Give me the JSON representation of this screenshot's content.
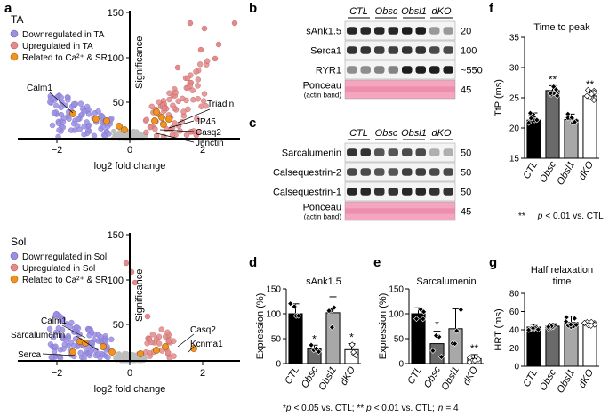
{
  "panel_labels": {
    "a": "a",
    "b": "b",
    "c": "c",
    "d": "d",
    "e": "e",
    "f": "f",
    "g": "g"
  },
  "volcano": {
    "axis_ylabel": "Significance",
    "axis_xlabel": "log2 fold change",
    "xticks": [
      "−2",
      "0",
      "2"
    ],
    "top": {
      "tissue": "TA",
      "yticks": [
        "50",
        "100",
        "150"
      ],
      "legend": [
        "Downregulated in TA",
        "Upregulated in TA",
        "Related to Ca²⁺ & SR"
      ],
      "genes": [
        "Calm1",
        "Triadin",
        "JP45",
        "Casq2",
        "Junctin"
      ]
    },
    "bottom": {
      "tissue": "Sol",
      "yticks": [
        "50",
        "100",
        "150"
      ],
      "legend": [
        "Downregulated in Sol",
        "Upregulated in Sol",
        "Related to Ca²⁺ & SR"
      ],
      "genes": [
        "Calm1",
        "Sarcalumenin",
        "Serca",
        "Casq2",
        "Kcnma1"
      ]
    }
  },
  "western": {
    "lanes": [
      "CTL",
      "Obsc",
      "Obsl1",
      "dKO"
    ],
    "b_rows": [
      {
        "name": "sAnk1.5",
        "kda": "20"
      },
      {
        "name": "Serca1",
        "kda": "100"
      },
      {
        "name": "RYR1",
        "kda": "~550"
      },
      {
        "name": "Ponceau",
        "sub": "(actin band)",
        "kda": "45"
      }
    ],
    "c_rows": [
      {
        "name": "Sarcalumenin",
        "kda": "50"
      },
      {
        "name": "Calsequestrin-2",
        "kda": "50"
      },
      {
        "name": "Calsequestrin-1",
        "kda": "50"
      },
      {
        "name": "Ponceau",
        "sub": "(actin band)",
        "kda": "45"
      }
    ]
  },
  "chart_data": [
    {
      "type": "bar",
      "panel": "d",
      "title": "sAnk1.5",
      "ylabel": "Expression (%)",
      "categories": [
        "CTL",
        "Obsc",
        "Obsl1",
        "dKO"
      ],
      "values": [
        100,
        30,
        102,
        28
      ],
      "errors": [
        20,
        7,
        32,
        12
      ],
      "significance": [
        "",
        "*",
        "",
        "*"
      ],
      "ylim": [
        0,
        150
      ],
      "yticks": [
        "0",
        "50",
        "100",
        "150"
      ]
    },
    {
      "type": "bar",
      "panel": "e",
      "title": "Sarcalumenin",
      "ylabel": "Expression (%)",
      "categories": [
        "CTL",
        "Obsc",
        "Obsl1",
        "dKO"
      ],
      "values": [
        100,
        40,
        70,
        10
      ],
      "errors": [
        12,
        25,
        40,
        8
      ],
      "significance": [
        "",
        "*",
        "",
        "**"
      ],
      "ylim": [
        0,
        150
      ],
      "yticks": [
        "0",
        "50",
        "100",
        "150"
      ]
    },
    {
      "type": "bar",
      "panel": "f",
      "title": "Time to peak",
      "ylabel": "TtP (ms)",
      "categories": [
        "CTL",
        "Obsc",
        "Obsl1",
        "dKO"
      ],
      "values": [
        21.3,
        26.2,
        21.4,
        25.3
      ],
      "errors": [
        1.2,
        0.8,
        0.9,
        0.9
      ],
      "significance": [
        "",
        "**",
        "",
        "**"
      ],
      "ylim": [
        15,
        35
      ],
      "yticks": [
        "15",
        "20",
        "25",
        "30",
        "35"
      ]
    },
    {
      "type": "bar",
      "panel": "g",
      "title_lines": [
        "Half relaxation",
        "time"
      ],
      "ylabel": "HRT (ms)",
      "categories": [
        "CTL",
        "Obsc",
        "Obsl1",
        "dKO"
      ],
      "values": [
        43,
        44,
        48,
        46
      ],
      "errors": [
        3,
        3,
        7,
        2.5
      ],
      "significance": [
        "",
        "",
        "",
        ""
      ],
      "ylim": [
        0,
        80
      ],
      "yticks": [
        "0",
        "20",
        "40",
        "60",
        "80"
      ]
    }
  ],
  "footnotes": {
    "f_mark": "**",
    "f_p": "p",
    "f_rest": "< 0.01 vs. CTL",
    "de_star1": "*",
    "de_p1": "p",
    "de_rest1": "< 0.05 vs. CTL; **",
    "de_p2": "p",
    "de_rest2": "< 0.01 vs. CTL;",
    "de_n": "n",
    "de_rest3": "= 4"
  },
  "colors": {
    "down": "#9b8fe0",
    "up": "#e48a8a",
    "ca": "#f0941f",
    "gray": "#bdbdbd",
    "bar_ctl": "#000000",
    "bar_obsc": "#6a6a6a",
    "bar_obsl1": "#a8a8a8",
    "bar_dko": "#ffffff",
    "ponceau": "#f4a6bf"
  }
}
